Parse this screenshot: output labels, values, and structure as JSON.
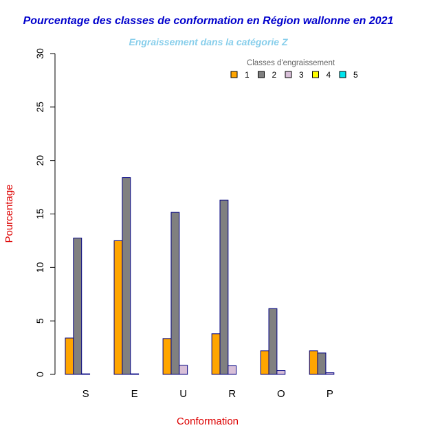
{
  "chart_data": {
    "type": "bar",
    "title": "Pourcentage des classes de conformation en Région wallonne en 2021",
    "subtitle": "Engraissement dans la catégorie Z",
    "xlabel": "Conformation",
    "ylabel": "Pourcentage",
    "ylim": [
      0,
      30
    ],
    "yticks": [
      0,
      5,
      10,
      15,
      20,
      25,
      30
    ],
    "categories": [
      "S",
      "E",
      "U",
      "R",
      "O",
      "P"
    ],
    "legend": {
      "title": "Classes d'engraissement",
      "placement": "top-right"
    },
    "series": [
      {
        "name": "1",
        "color": "#ffa500",
        "values": [
          3.4,
          12.5,
          3.35,
          3.8,
          2.2,
          2.2
        ]
      },
      {
        "name": "2",
        "color": "#808080",
        "values": [
          12.75,
          18.4,
          15.15,
          16.3,
          6.15,
          2.0
        ]
      },
      {
        "name": "3",
        "color": "#d8bfd8",
        "values": [
          0.05,
          0.05,
          0.85,
          0.8,
          0.35,
          0.15
        ]
      },
      {
        "name": "4",
        "color": "#ffff00",
        "values": [
          0,
          0,
          0,
          0,
          0,
          0
        ]
      },
      {
        "name": "5",
        "color": "#00e5ee",
        "values": [
          0,
          0,
          0,
          0,
          0,
          0
        ]
      }
    ],
    "bar_border_color": "#000080"
  }
}
